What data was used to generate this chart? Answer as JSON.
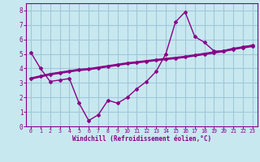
{
  "hours": [
    0,
    1,
    2,
    3,
    4,
    5,
    6,
    7,
    8,
    9,
    10,
    11,
    12,
    13,
    14,
    15,
    16,
    17,
    18,
    19,
    20,
    21,
    22,
    23
  ],
  "windchill": [
    5.1,
    4.0,
    3.1,
    3.2,
    3.3,
    1.6,
    0.4,
    0.8,
    1.8,
    1.6,
    2.0,
    2.6,
    3.1,
    3.8,
    5.0,
    7.2,
    7.9,
    6.2,
    5.8,
    5.2,
    5.2,
    5.3,
    5.5,
    5.6
  ],
  "temperature": [
    3.3,
    3.45,
    3.6,
    3.7,
    3.8,
    3.9,
    3.95,
    4.05,
    4.15,
    4.25,
    4.35,
    4.42,
    4.5,
    4.58,
    4.65,
    4.72,
    4.8,
    4.9,
    5.0,
    5.1,
    5.2,
    5.35,
    5.45,
    5.55
  ],
  "line_color": "#880088",
  "bg_color": "#c8e8f0",
  "grid_color": "#a0c8d8",
  "xlabel": "Windchill (Refroidissement éolien,°C)",
  "ylim": [
    0,
    8.5
  ],
  "xlim": [
    -0.5,
    23.5
  ],
  "yticks": [
    0,
    1,
    2,
    3,
    4,
    5,
    6,
    7,
    8
  ],
  "xticks": [
    0,
    1,
    2,
    3,
    4,
    5,
    6,
    7,
    8,
    9,
    10,
    11,
    12,
    13,
    14,
    15,
    16,
    17,
    18,
    19,
    20,
    21,
    22,
    23
  ]
}
